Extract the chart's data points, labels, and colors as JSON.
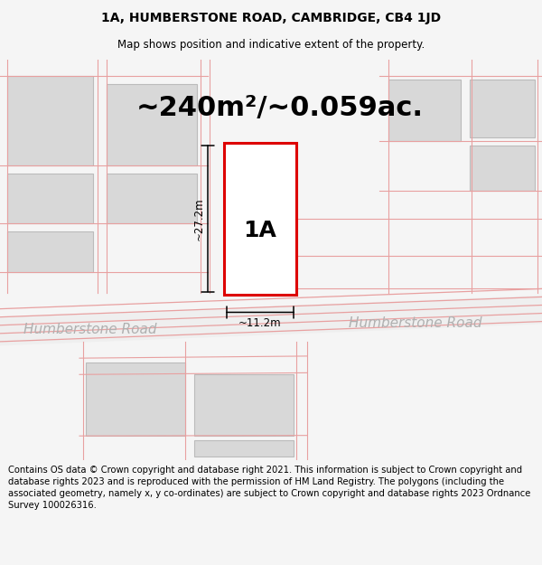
{
  "title": "1A, HUMBERSTONE ROAD, CAMBRIDGE, CB4 1JD",
  "subtitle": "Map shows position and indicative extent of the property.",
  "area_label": "~240m²/~0.059ac.",
  "property_label": "1A",
  "dim_width": "~11.2m",
  "dim_height": "~27.2m",
  "road_label_left": "Humberstone Road",
  "road_label_right": "Humberstone Road",
  "footer": "Contains OS data © Crown copyright and database right 2021. This information is subject to Crown copyright and database rights 2023 and is reproduced with the permission of HM Land Registry. The polygons (including the associated geometry, namely x, y co-ordinates) are subject to Crown copyright and database rights 2023 Ordnance Survey 100026316.",
  "bg_color": "#f5f5f5",
  "map_bg": "#f5f5f5",
  "building_fill": "#d8d8d8",
  "building_edge": "#bbbbbb",
  "road_line_color": "#e8a0a0",
  "property_outline_color": "#dd0000",
  "dim_line_color": "#000000",
  "title_fontsize": 10,
  "subtitle_fontsize": 8.5,
  "area_fontsize": 22,
  "label_fontsize": 18,
  "road_fontsize": 11,
  "footer_fontsize": 7.2
}
